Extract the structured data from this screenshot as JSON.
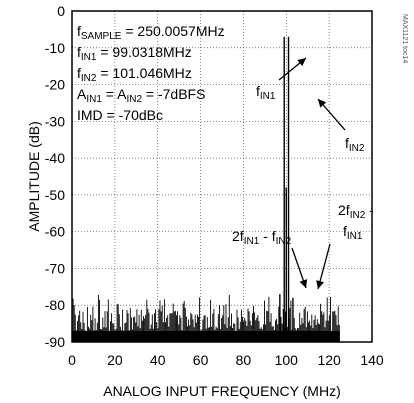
{
  "chart_data": {
    "type": "line",
    "title": "",
    "xlabel": "ANALOG INPUT FREQUENCY (MHz)",
    "ylabel": "AMPLITUDE (dB)",
    "xlim": [
      0,
      140
    ],
    "ylim": [
      -90,
      0
    ],
    "grid": true,
    "x_ticks": [
      "0",
      "20",
      "40",
      "60",
      "80",
      "100",
      "120",
      "140"
    ],
    "y_ticks": [
      "0",
      "-10",
      "-20",
      "-30",
      "-40",
      "-50",
      "-60",
      "-70",
      "-80",
      "-90"
    ],
    "noise_floor": {
      "x_range": [
        0,
        125
      ],
      "typical_db": [
        -82,
        -90
      ],
      "peak_db": -77
    },
    "peaks": [
      {
        "x": 99.0318,
        "y": -7,
        "label_parts": [
          "f",
          "IN1"
        ]
      },
      {
        "x": 101.046,
        "y": -7,
        "label_parts": [
          "f",
          "IN2"
        ]
      },
      {
        "x": 97.0,
        "y": -77,
        "label": "2fIN1 - fIN2"
      },
      {
        "x": 103.1,
        "y": -78,
        "label": "2fIN2 - fIN1"
      },
      {
        "x": 100.0,
        "y": -48,
        "label": ""
      }
    ],
    "annotations": {
      "lines": [
        {
          "parts": [
            [
              "f",
              ""
            ],
            [
              "SAMPLE",
              "sub"
            ],
            [
              " = 250.0057MHz",
              ""
            ]
          ]
        },
        {
          "parts": [
            [
              "f",
              ""
            ],
            [
              "IN1",
              "sub"
            ],
            [
              " = 99.0318MHz",
              ""
            ]
          ]
        },
        {
          "parts": [
            [
              "f",
              ""
            ],
            [
              "IN2",
              "sub"
            ],
            [
              " = 101.046MHz",
              ""
            ]
          ]
        },
        {
          "parts": [
            [
              "A",
              ""
            ],
            [
              "IN1",
              "sub"
            ],
            [
              " = A",
              ""
            ],
            [
              "IN2",
              "sub"
            ],
            [
              " = -7dBFS",
              ""
            ]
          ]
        },
        {
          "parts": [
            [
              "IMD = -70dBc",
              ""
            ]
          ]
        }
      ],
      "imd_left": [
        [
          "2f",
          ""
        ],
        [
          "IN1",
          "sub"
        ],
        [
          " - f",
          ""
        ],
        [
          "IN2",
          "sub"
        ]
      ],
      "imd_right_1": [
        [
          "2f",
          ""
        ],
        [
          "IN2",
          "sub"
        ],
        [
          " -",
          ""
        ]
      ],
      "imd_right_2": [
        [
          "f",
          ""
        ],
        [
          "IN1",
          "sub"
        ]
      ],
      "fin1_label": [
        [
          "f",
          ""
        ],
        [
          "IN1",
          "sub"
        ]
      ],
      "fin2_label": [
        [
          "f",
          ""
        ],
        [
          "IN2",
          "sub"
        ]
      ]
    },
    "side_text": "MAX1121 toc14"
  }
}
